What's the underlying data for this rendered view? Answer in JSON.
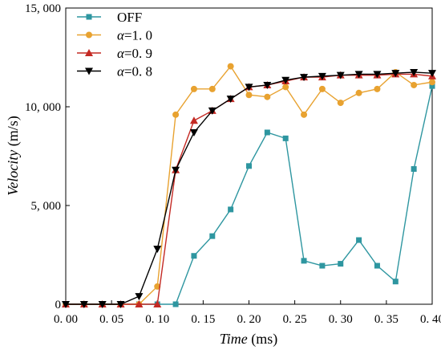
{
  "chart_data": {
    "type": "line",
    "xlabel_main": "Time",
    "xlabel_unit": " (ms)",
    "ylabel_main": "Velocity",
    "ylabel_unit": " (m/s)",
    "xlim": [
      0.0,
      0.4
    ],
    "ylim": [
      0,
      15000
    ],
    "x_ticks": [
      0.0,
      0.05,
      0.1,
      0.15,
      0.2,
      0.25,
      0.3,
      0.35,
      0.4
    ],
    "x_tick_labels": [
      "0. 00",
      "0. 05",
      "0. 10",
      "0. 15",
      "0. 20",
      "0. 25",
      "0. 30",
      "0. 35",
      "0. 40"
    ],
    "y_ticks": [
      0,
      5000,
      10000,
      15000
    ],
    "y_tick_labels": [
      "0",
      "5, 000",
      "10, 000",
      "15, 000"
    ],
    "grid": false,
    "legend_position": "top-left",
    "x": [
      0.0,
      0.02,
      0.04,
      0.06,
      0.08,
      0.1,
      0.12,
      0.14,
      0.16,
      0.18,
      0.2,
      0.22,
      0.24,
      0.26,
      0.28,
      0.3,
      0.32,
      0.34,
      0.36,
      0.38,
      0.4
    ],
    "series": [
      {
        "name": "OFF",
        "greek": "",
        "value": "",
        "color": "#2e96a0",
        "marker": "square",
        "values": [
          0,
          0,
          0,
          0,
          0,
          0,
          0,
          2450,
          3450,
          4800,
          7000,
          8700,
          8400,
          2200,
          1950,
          2050,
          3250,
          1950,
          1150,
          6850,
          11050
        ]
      },
      {
        "name": "",
        "greek": "α",
        "value": "=1. 0",
        "color": "#e8a230",
        "marker": "circle",
        "values": [
          0,
          0,
          0,
          0,
          0,
          900,
          9600,
          10900,
          10900,
          12050,
          10600,
          10500,
          11000,
          9600,
          10900,
          10200,
          10700,
          10900,
          11750,
          11100,
          11250
        ]
      },
      {
        "name": "",
        "greek": "α",
        "value": "=0. 9",
        "color": "#c42a24",
        "marker": "triangle-up",
        "values": [
          0,
          0,
          0,
          0,
          0,
          0,
          6800,
          9300,
          9800,
          10400,
          11000,
          11100,
          11300,
          11500,
          11500,
          11600,
          11600,
          11600,
          11650,
          11650,
          11550
        ]
      },
      {
        "name": "",
        "greek": "α",
        "value": "=0. 8",
        "color": "#000000",
        "marker": "triangle-down",
        "values": [
          0,
          0,
          0,
          0,
          400,
          2800,
          6800,
          8700,
          9800,
          10400,
          11000,
          11100,
          11350,
          11500,
          11550,
          11600,
          11650,
          11650,
          11700,
          11750,
          11700
        ]
      }
    ]
  }
}
